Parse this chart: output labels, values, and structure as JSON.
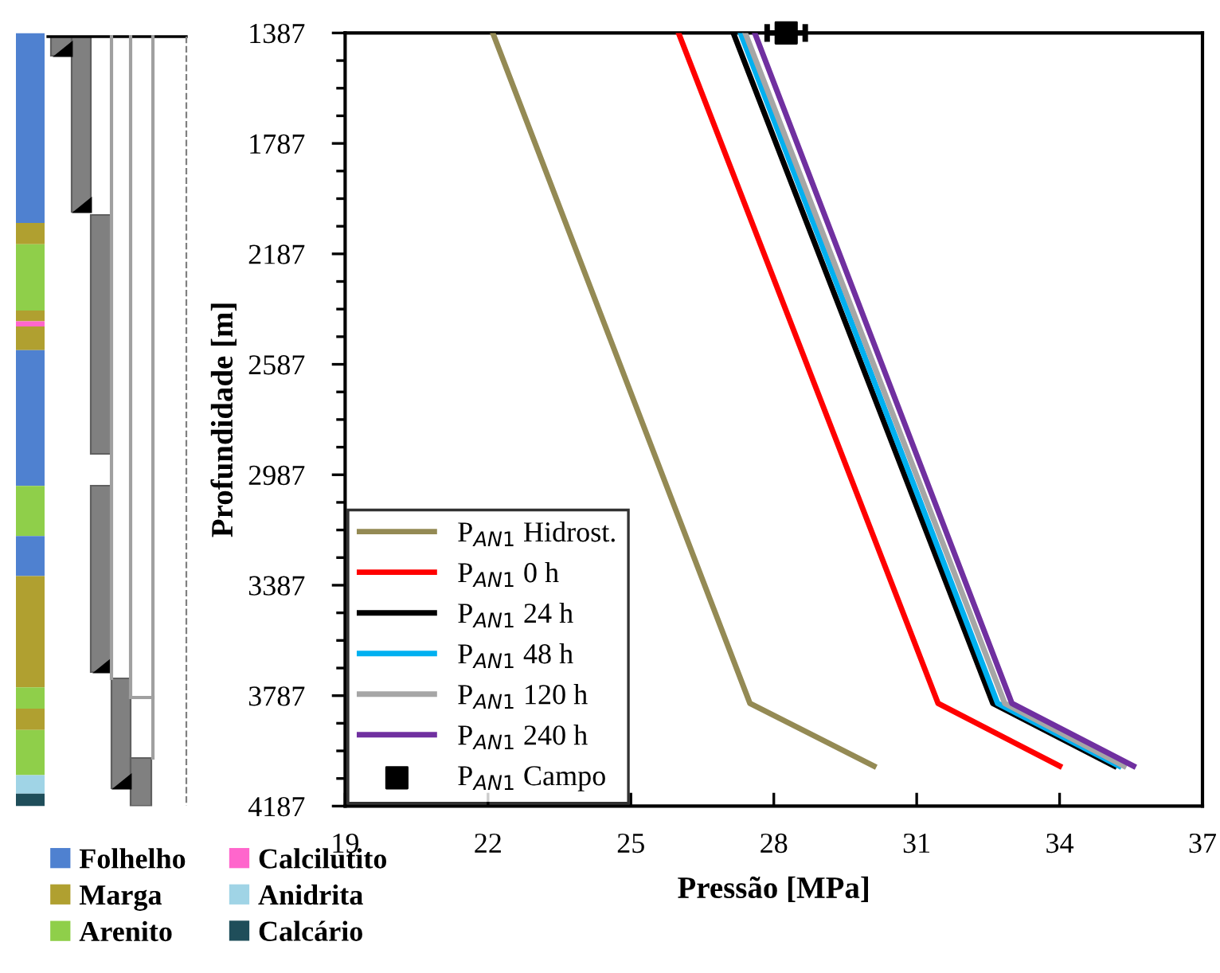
{
  "chart_data": [
    {
      "type": "bar",
      "categories": [
        null
      ],
      "ylim": [
        4187,
        1387
      ],
      "tick_labels": false,
      "legend": "bottom",
      "series": [
        {
          "name": "Folhelho",
          "color": "#4f81d0",
          "base": [
            1387
          ],
          "values": [
            688
          ]
        },
        {
          "name": "Marga",
          "color": "#b0a030",
          "base": [
            2075
          ],
          "values": [
            77
          ]
        },
        {
          "name": "Arenito",
          "color": "#8fcf4a",
          "base": [
            2152
          ],
          "values": [
            240
          ]
        },
        {
          "color": "#b0a030",
          "base": [
            2392
          ],
          "values": [
            39
          ]
        },
        {
          "name": "Calcilutito",
          "color": "#ff66cc",
          "base": [
            2431
          ],
          "values": [
            19
          ]
        },
        {
          "color": "#b0a030",
          "base": [
            2450
          ],
          "values": [
            86
          ]
        },
        {
          "color": "#4f81d0",
          "base": [
            2536
          ],
          "values": [
            491
          ]
        },
        {
          "color": "#8fcf4a",
          "base": [
            3027
          ],
          "values": [
            182
          ]
        },
        {
          "color": "#4f81d0",
          "base": [
            3209
          ],
          "values": [
            145
          ]
        },
        {
          "color": "#b0a030",
          "base": [
            3354
          ],
          "values": [
            403
          ]
        },
        {
          "color": "#8fcf4a",
          "base": [
            3757
          ],
          "values": [
            77
          ]
        },
        {
          "color": "#b0a030",
          "base": [
            3834
          ],
          "values": [
            77
          ]
        },
        {
          "color": "#8fcf4a",
          "base": [
            3911
          ],
          "values": [
            164
          ]
        },
        {
          "name": "Anidrita",
          "color": "#a0d4e6",
          "base": [
            4075
          ],
          "values": [
            67
          ]
        },
        {
          "name": "Calcário",
          "color": "#1f4e5a",
          "base": [
            4142
          ],
          "values": [
            45
          ]
        }
      ]
    },
    {
      "type": "line",
      "xlabel": "Pressão [MPa]",
      "ylabel": "Profundidade [m]",
      "xlim": [
        19,
        37
      ],
      "xticks": [
        19,
        22,
        25,
        28,
        31,
        34,
        37
      ],
      "ylim": [
        4187,
        1387
      ],
      "yticks": [
        1387,
        1787,
        2187,
        2587,
        2987,
        3387,
        3787,
        4187
      ],
      "grid": false,
      "legend": "bottom left",
      "marker": "none",
      "line_style": "solid",
      "series": [
        {
          "name": "P$_{AN1}$ Hidrost.",
          "color": "#948a54",
          "x": [
            22.1,
            27.5,
            30.1
          ],
          "values": [
            1387,
            3815,
            4042
          ]
        },
        {
          "name": "P$_{AN1}$ 0 h",
          "color": "#ff0000",
          "x": [
            26.0,
            31.45,
            34.0
          ],
          "values": [
            1387,
            3815,
            4042
          ]
        },
        {
          "name": "P$_{AN1}$ 24 h",
          "color": "#000000",
          "x": [
            27.15,
            32.6,
            35.15
          ],
          "values": [
            1387,
            3815,
            4042
          ]
        },
        {
          "name": "P$_{AN1}$ 48 h",
          "color": "#00b0f0",
          "x": [
            27.3,
            32.7,
            35.25
          ],
          "values": [
            1387,
            3815,
            4042
          ]
        },
        {
          "name": "P$_{AN1}$ 120 h",
          "color": "#a6a6a6",
          "x": [
            27.4,
            32.85,
            35.35
          ],
          "values": [
            1387,
            3815,
            4042
          ]
        },
        {
          "name": "P$_{AN1}$ 240 h",
          "color": "#7030a0",
          "x": [
            27.6,
            33.0,
            35.55
          ],
          "values": [
            1387,
            3815,
            4042
          ]
        },
        {
          "name": "P$_{AN1}$ Campo",
          "type": "scatter",
          "marker": "square",
          "color": "#000000",
          "x": [
            28.26
          ],
          "values": [
            1387
          ],
          "xerrors": [
            0.4
          ]
        }
      ]
    }
  ]
}
